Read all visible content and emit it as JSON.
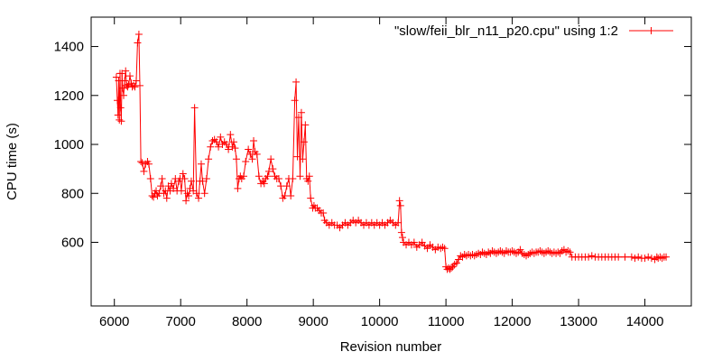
{
  "chart_data": {
    "type": "line",
    "xlabel": "Revision number",
    "ylabel": "CPU time (s)",
    "xlim": [
      5650,
      14700
    ],
    "ylim": [
      340,
      1520
    ],
    "xticks": [
      6000,
      7000,
      8000,
      9000,
      10000,
      11000,
      12000,
      13000,
      14000
    ],
    "yticks": [
      600,
      800,
      1000,
      1200,
      1400
    ],
    "grid": false,
    "legend_position": "top-right",
    "series": [
      {
        "name": "\"slow/feii_blr_n11_p20.cpu\" using 1:2",
        "color": "#ff0000",
        "marker": "plus",
        "points": [
          [
            6030,
            1275
          ],
          [
            6045,
            1180
          ],
          [
            6055,
            1120
          ],
          [
            6065,
            1260
          ],
          [
            6075,
            1100
          ],
          [
            6085,
            1290
          ],
          [
            6095,
            1150
          ],
          [
            6105,
            1095
          ],
          [
            6115,
            1290
          ],
          [
            6125,
            1230
          ],
          [
            6140,
            1200
          ],
          [
            6155,
            1260
          ],
          [
            6170,
            1300
          ],
          [
            6185,
            1240
          ],
          [
            6200,
            1235
          ],
          [
            6215,
            1245
          ],
          [
            6235,
            1280
          ],
          [
            6255,
            1250
          ],
          [
            6270,
            1235
          ],
          [
            6290,
            1240
          ],
          [
            6310,
            1235
          ],
          [
            6330,
            1260
          ],
          [
            6350,
            1415
          ],
          [
            6370,
            1450
          ],
          [
            6385,
            1240
          ],
          [
            6400,
            930
          ],
          [
            6420,
            925
          ],
          [
            6445,
            890
          ],
          [
            6470,
            920
          ],
          [
            6500,
            930
          ],
          [
            6520,
            920
          ],
          [
            6545,
            860
          ],
          [
            6570,
            790
          ],
          [
            6590,
            785
          ],
          [
            6610,
            800
          ],
          [
            6630,
            810
          ],
          [
            6650,
            790
          ],
          [
            6675,
            800
          ],
          [
            6700,
            830
          ],
          [
            6720,
            860
          ],
          [
            6745,
            800
          ],
          [
            6770,
            810
          ],
          [
            6790,
            780
          ],
          [
            6815,
            830
          ],
          [
            6840,
            810
          ],
          [
            6860,
            840
          ],
          [
            6890,
            820
          ],
          [
            6920,
            860
          ],
          [
            6945,
            810
          ],
          [
            6970,
            850
          ],
          [
            6990,
            860
          ],
          [
            7010,
            810
          ],
          [
            7035,
            880
          ],
          [
            7060,
            860
          ],
          [
            7080,
            770
          ],
          [
            7100,
            800
          ],
          [
            7120,
            790
          ],
          [
            7140,
            820
          ],
          [
            7160,
            850
          ],
          [
            7190,
            810
          ],
          [
            7210,
            1150
          ],
          [
            7240,
            800
          ],
          [
            7270,
            780
          ],
          [
            7290,
            850
          ],
          [
            7310,
            920
          ],
          [
            7330,
            850
          ],
          [
            7360,
            800
          ],
          [
            7390,
            860
          ],
          [
            7420,
            940
          ],
          [
            7450,
            990
          ],
          [
            7480,
            1015
          ],
          [
            7510,
            1020
          ],
          [
            7540,
            1010
          ],
          [
            7570,
            990
          ],
          [
            7600,
            1030
          ],
          [
            7630,
            1000
          ],
          [
            7660,
            1010
          ],
          [
            7690,
            1000
          ],
          [
            7720,
            980
          ],
          [
            7750,
            1040
          ],
          [
            7780,
            990
          ],
          [
            7800,
            1010
          ],
          [
            7820,
            985
          ],
          [
            7840,
            940
          ],
          [
            7860,
            820
          ],
          [
            7880,
            860
          ],
          [
            7900,
            870
          ],
          [
            7920,
            860
          ],
          [
            7950,
            870
          ],
          [
            7980,
            930
          ],
          [
            8020,
            980
          ],
          [
            8050,
            960
          ],
          [
            8080,
            940
          ],
          [
            8100,
            1015
          ],
          [
            8120,
            970
          ],
          [
            8150,
            960
          ],
          [
            8180,
            870
          ],
          [
            8210,
            840
          ],
          [
            8240,
            850
          ],
          [
            8260,
            840
          ],
          [
            8280,
            860
          ],
          [
            8310,
            870
          ],
          [
            8330,
            890
          ],
          [
            8360,
            940
          ],
          [
            8390,
            900
          ],
          [
            8420,
            870
          ],
          [
            8450,
            860
          ],
          [
            8480,
            860
          ],
          [
            8510,
            830
          ],
          [
            8540,
            780
          ],
          [
            8570,
            790
          ],
          [
            8600,
            830
          ],
          [
            8630,
            860
          ],
          [
            8660,
            790
          ],
          [
            8690,
            860
          ],
          [
            8720,
            1180
          ],
          [
            8740,
            1255
          ],
          [
            8760,
            950
          ],
          [
            8780,
            1110
          ],
          [
            8800,
            870
          ],
          [
            8820,
            1130
          ],
          [
            8840,
            940
          ],
          [
            8860,
            1010
          ],
          [
            8880,
            1080
          ],
          [
            8900,
            860
          ],
          [
            8920,
            850
          ],
          [
            8940,
            870
          ],
          [
            8960,
            780
          ],
          [
            8990,
            740
          ],
          [
            9010,
            750
          ],
          [
            9030,
            740
          ],
          [
            9060,
            740
          ],
          [
            9090,
            730
          ],
          [
            9120,
            720
          ],
          [
            9150,
            720
          ],
          [
            9170,
            690
          ],
          [
            9200,
            680
          ],
          [
            9240,
            670
          ],
          [
            9280,
            680
          ],
          [
            9320,
            670
          ],
          [
            9360,
            670
          ],
          [
            9400,
            660
          ],
          [
            9440,
            670
          ],
          [
            9480,
            680
          ],
          [
            9520,
            670
          ],
          [
            9560,
            680
          ],
          [
            9600,
            690
          ],
          [
            9640,
            680
          ],
          [
            9680,
            690
          ],
          [
            9720,
            680
          ],
          [
            9760,
            670
          ],
          [
            9800,
            680
          ],
          [
            9840,
            670
          ],
          [
            9880,
            680
          ],
          [
            9920,
            670
          ],
          [
            9960,
            680
          ],
          [
            10000,
            670
          ],
          [
            10040,
            680
          ],
          [
            10080,
            670
          ],
          [
            10120,
            680
          ],
          [
            10160,
            690
          ],
          [
            10200,
            680
          ],
          [
            10240,
            670
          ],
          [
            10280,
            680
          ],
          [
            10300,
            770
          ],
          [
            10315,
            750
          ],
          [
            10330,
            640
          ],
          [
            10345,
            620
          ],
          [
            10360,
            600
          ],
          [
            10400,
            590
          ],
          [
            10440,
            600
          ],
          [
            10480,
            590
          ],
          [
            10520,
            600
          ],
          [
            10560,
            580
          ],
          [
            10600,
            590
          ],
          [
            10640,
            600
          ],
          [
            10680,
            585
          ],
          [
            10720,
            575
          ],
          [
            10760,
            590
          ],
          [
            10800,
            580
          ],
          [
            10840,
            570
          ],
          [
            10880,
            580
          ],
          [
            10920,
            575
          ],
          [
            10950,
            580
          ],
          [
            10980,
            575
          ],
          [
            11000,
            500
          ],
          [
            11020,
            490
          ],
          [
            11040,
            495
          ],
          [
            11060,
            490
          ],
          [
            11080,
            495
          ],
          [
            11100,
            500
          ],
          [
            11130,
            510
          ],
          [
            11160,
            515
          ],
          [
            11190,
            530
          ],
          [
            11220,
            545
          ],
          [
            11250,
            540
          ],
          [
            11280,
            550
          ],
          [
            11310,
            545
          ],
          [
            11340,
            550
          ],
          [
            11370,
            545
          ],
          [
            11400,
            550
          ],
          [
            11430,
            545
          ],
          [
            11460,
            550
          ],
          [
            11490,
            555
          ],
          [
            11520,
            550
          ],
          [
            11550,
            560
          ],
          [
            11580,
            555
          ],
          [
            11610,
            550
          ],
          [
            11640,
            560
          ],
          [
            11670,
            555
          ],
          [
            11700,
            565
          ],
          [
            11730,
            560
          ],
          [
            11760,
            555
          ],
          [
            11790,
            560
          ],
          [
            11820,
            565
          ],
          [
            11850,
            560
          ],
          [
            11880,
            555
          ],
          [
            11910,
            565
          ],
          [
            11940,
            560
          ],
          [
            11970,
            560
          ],
          [
            12000,
            565
          ],
          [
            12030,
            560
          ],
          [
            12060,
            555
          ],
          [
            12090,
            560
          ],
          [
            12120,
            570
          ],
          [
            12150,
            555
          ],
          [
            12180,
            550
          ],
          [
            12210,
            545
          ],
          [
            12240,
            550
          ],
          [
            12270,
            555
          ],
          [
            12300,
            560
          ],
          [
            12330,
            555
          ],
          [
            12360,
            560
          ],
          [
            12390,
            560
          ],
          [
            12420,
            565
          ],
          [
            12450,
            560
          ],
          [
            12480,
            555
          ],
          [
            12510,
            560
          ],
          [
            12540,
            565
          ],
          [
            12570,
            560
          ],
          [
            12600,
            555
          ],
          [
            12630,
            560
          ],
          [
            12660,
            555
          ],
          [
            12690,
            560
          ],
          [
            12720,
            555
          ],
          [
            12750,
            565
          ],
          [
            12780,
            570
          ],
          [
            12810,
            560
          ],
          [
            12840,
            565
          ],
          [
            12870,
            560
          ],
          [
            12900,
            540
          ],
          [
            12950,
            540
          ],
          [
            13000,
            540
          ],
          [
            13050,
            540
          ],
          [
            13100,
            540
          ],
          [
            13150,
            540
          ],
          [
            13200,
            545
          ],
          [
            13250,
            540
          ],
          [
            13300,
            540
          ],
          [
            13350,
            540
          ],
          [
            13400,
            540
          ],
          [
            13450,
            540
          ],
          [
            13500,
            540
          ],
          [
            13550,
            540
          ],
          [
            13600,
            540
          ],
          [
            13700,
            540
          ],
          [
            13800,
            540
          ],
          [
            13850,
            535
          ],
          [
            13900,
            540
          ],
          [
            13950,
            535
          ],
          [
            14000,
            535
          ],
          [
            14050,
            540
          ],
          [
            14100,
            535
          ],
          [
            14150,
            530
          ],
          [
            14180,
            540
          ],
          [
            14200,
            535
          ],
          [
            14230,
            540
          ],
          [
            14260,
            535
          ],
          [
            14290,
            540
          ],
          [
            14320,
            540
          ]
        ]
      }
    ]
  }
}
